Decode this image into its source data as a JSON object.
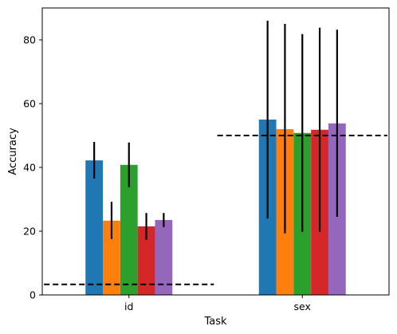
{
  "chart_data": {
    "type": "bar",
    "xlabel": "Task",
    "ylabel": "Accuracy",
    "categories": [
      "id",
      "sex"
    ],
    "ylim": [
      0,
      90
    ],
    "yticks": [
      0,
      20,
      40,
      60,
      80
    ],
    "grid": false,
    "legend": "none",
    "series": [
      {
        "color": "#1f77b4",
        "values": [
          42.2,
          55.0
        ],
        "err_low": [
          36.5,
          24.0
        ],
        "err_high": [
          48.0,
          86.0
        ]
      },
      {
        "color": "#ff7f0e",
        "values": [
          23.3,
          52.0
        ],
        "err_low": [
          17.5,
          19.3
        ],
        "err_high": [
          29.2,
          85.0
        ]
      },
      {
        "color": "#2ca02c",
        "values": [
          40.8,
          50.8
        ],
        "err_low": [
          33.8,
          19.8
        ],
        "err_high": [
          47.8,
          81.8
        ]
      },
      {
        "color": "#d62728",
        "values": [
          21.5,
          51.8
        ],
        "err_low": [
          17.3,
          19.8
        ],
        "err_high": [
          25.7,
          83.8
        ]
      },
      {
        "color": "#9467bd",
        "values": [
          23.5,
          53.8
        ],
        "err_low": [
          21.3,
          24.5
        ],
        "err_high": [
          25.7,
          83.2
        ]
      }
    ],
    "baselines": [
      {
        "category": "id",
        "value": 3.3
      },
      {
        "category": "sex",
        "value": 50.0
      }
    ]
  }
}
